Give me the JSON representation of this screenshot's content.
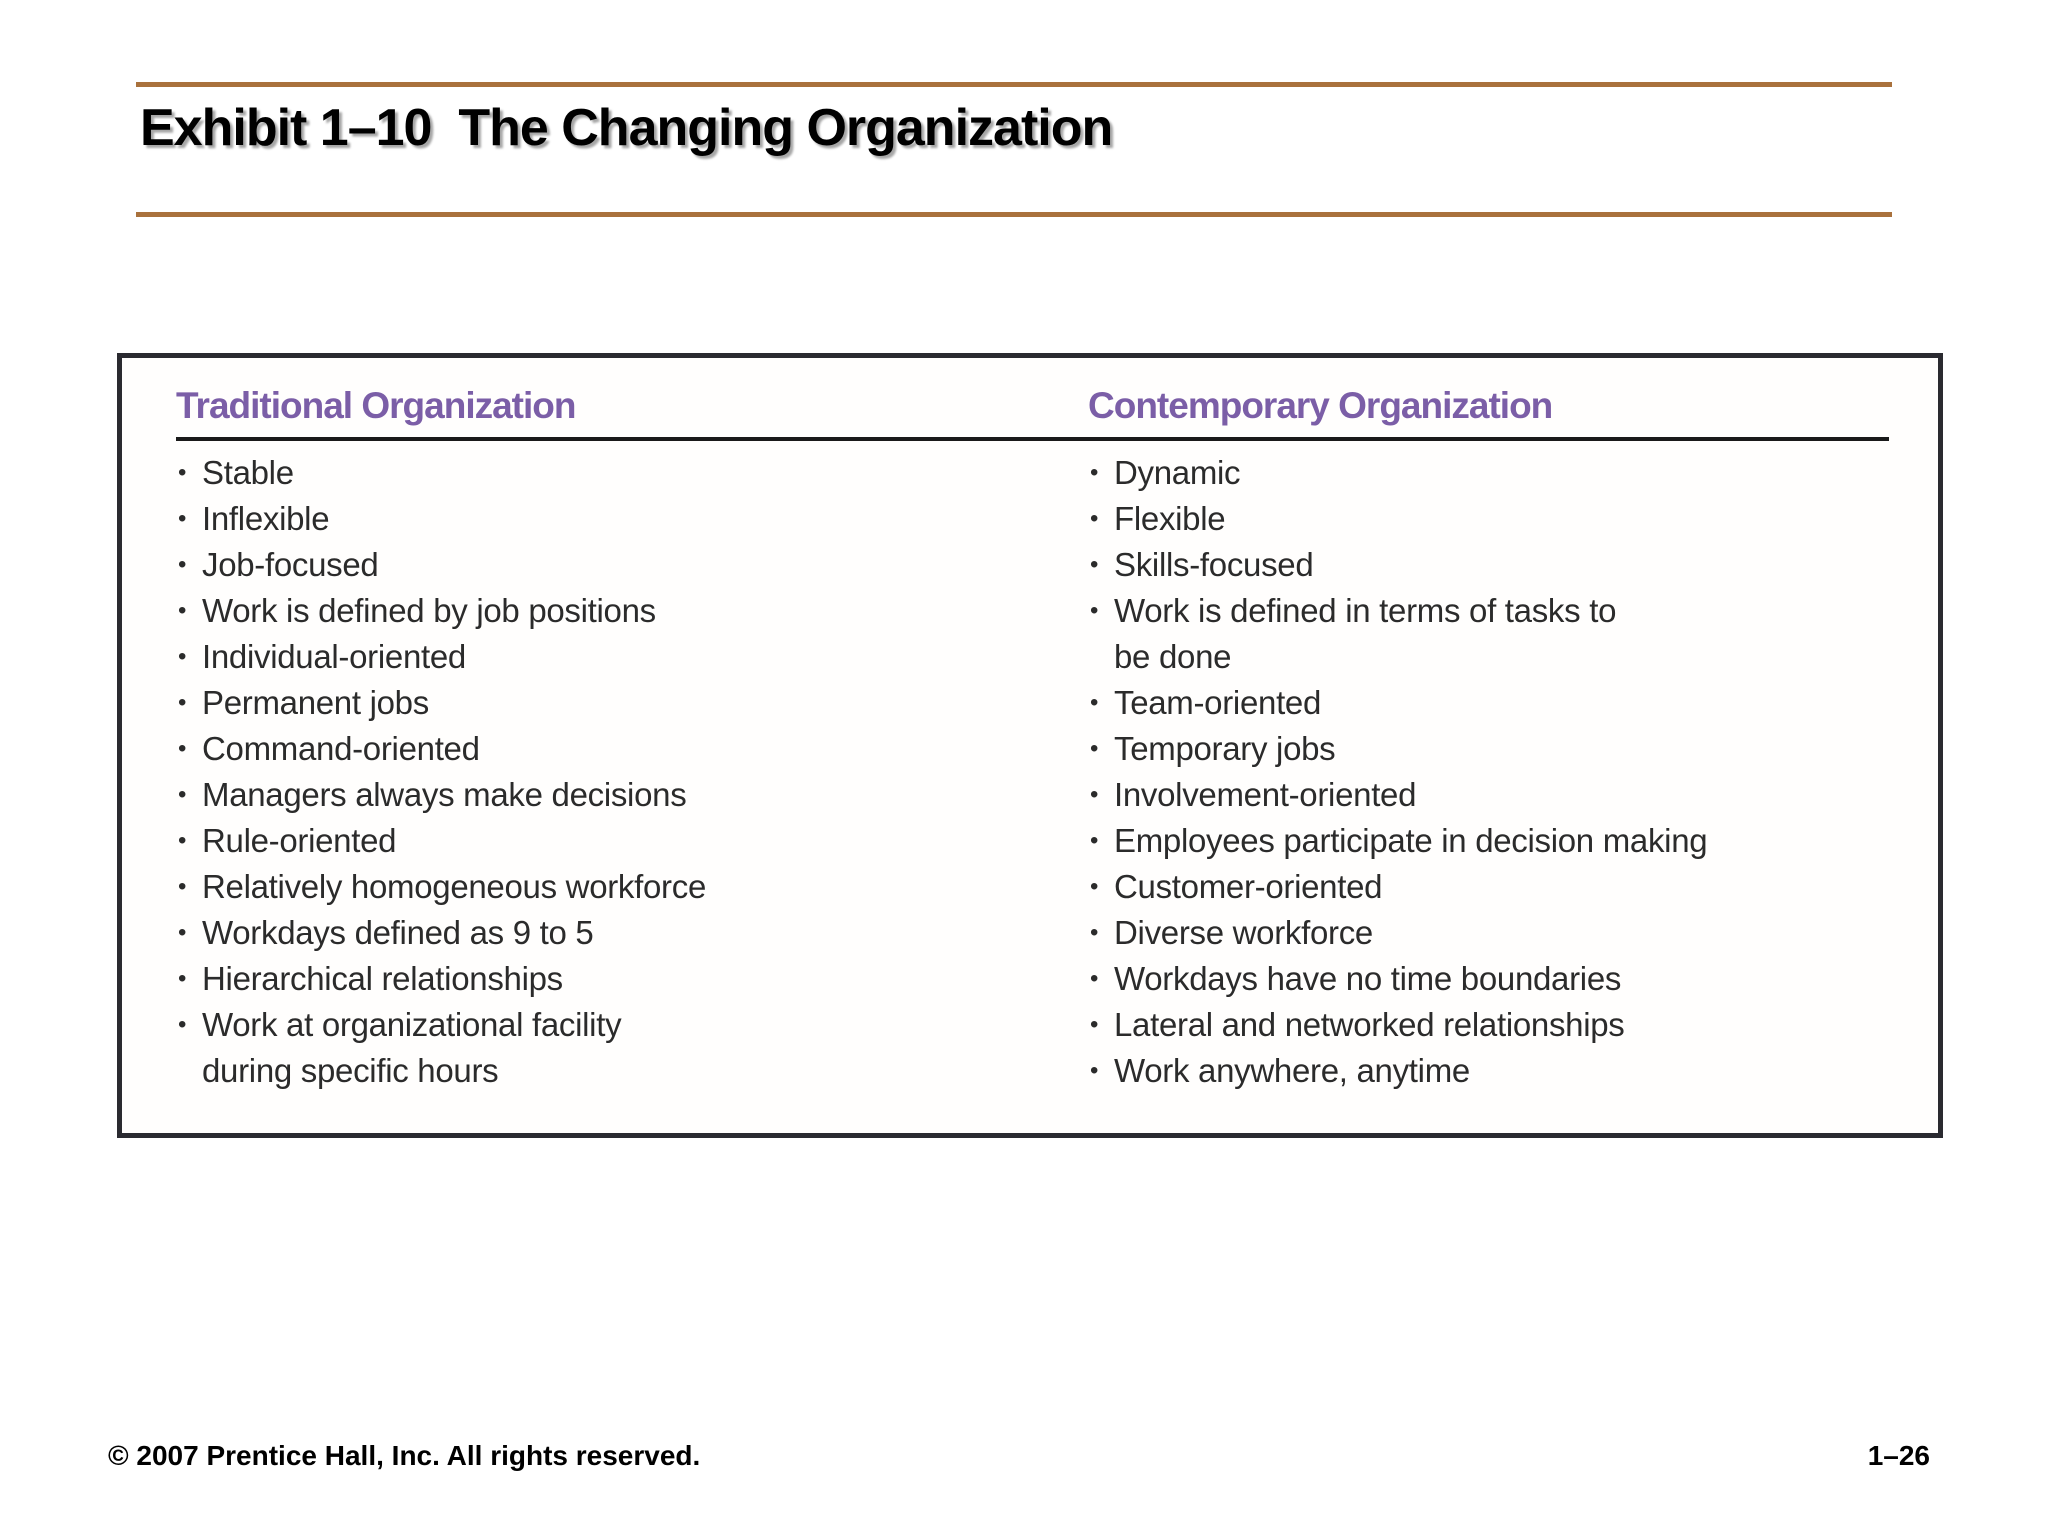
{
  "slide": {
    "title": "Exhibit 1–10  The Changing Organization",
    "footer_left": "© 2007 Prentice Hall, Inc. All rights reserved.",
    "footer_right": "1–26"
  },
  "colors": {
    "rule_brown": "#A9713C",
    "header_purple": "#7B5EA7",
    "body_text": "#2B2B2B",
    "box_border": "#2A2A30",
    "header_underline": "#1A1A1A"
  },
  "bullet_char": "•",
  "table": {
    "columns": [
      {
        "header": "Traditional Organization",
        "items": [
          "Stable",
          "Inflexible",
          "Job-focused",
          "Work is defined by job positions",
          "Individual-oriented",
          "Permanent jobs",
          "Command-oriented",
          "Managers always make decisions",
          "Rule-oriented",
          "Relatively homogeneous workforce",
          "Workdays defined as 9 to 5",
          "Hierarchical relationships",
          "Work at organizational facility\nduring specific hours"
        ]
      },
      {
        "header": "Contemporary Organization",
        "items": [
          "Dynamic",
          "Flexible",
          "Skills-focused",
          "Work is defined in terms of tasks to\nbe done",
          "Team-oriented",
          "Temporary jobs",
          "Involvement-oriented",
          "Employees participate in decision making",
          "Customer-oriented",
          "Diverse workforce",
          "Workdays have no time boundaries",
          "Lateral and networked relationships",
          "Work anywhere, anytime"
        ]
      }
    ]
  }
}
